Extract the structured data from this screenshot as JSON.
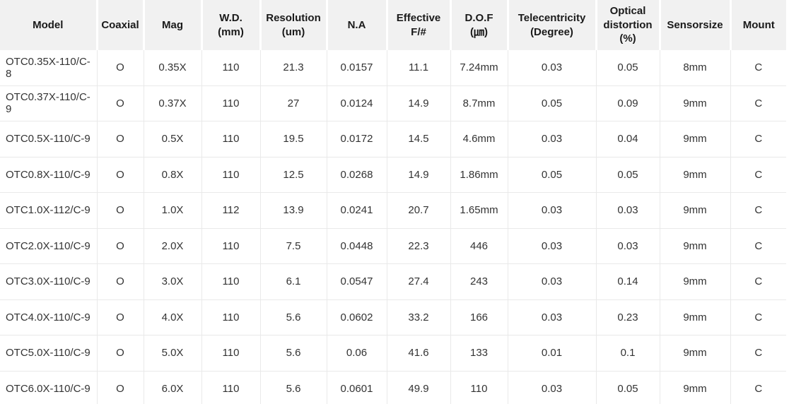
{
  "table": {
    "columns": [
      {
        "id": "model",
        "label": "Model"
      },
      {
        "id": "coaxial",
        "label": "Coaxial"
      },
      {
        "id": "mag",
        "label": "Mag"
      },
      {
        "id": "wd-mm",
        "label": "W.D.\n(mm)"
      },
      {
        "id": "resolution-um",
        "label": "Resolution\n(um)"
      },
      {
        "id": "na",
        "label": "N.A"
      },
      {
        "id": "effective-f-number",
        "label": "Effective\nF/#"
      },
      {
        "id": "dof-um",
        "label": "D.O.F\n(㎛)"
      },
      {
        "id": "telecentricity",
        "label": "Telecentricity\n(Degree)"
      },
      {
        "id": "optical-distortion",
        "label": "Optical\ndistortion\n(%)"
      },
      {
        "id": "sensorsize",
        "label": "Sensorsize"
      },
      {
        "id": "mount",
        "label": "Mount"
      }
    ],
    "rows": [
      {
        "cells": [
          "OTC0.35X-110/C-8",
          "O",
          "0.35X",
          "110",
          "21.3",
          "0.0157",
          "11.1",
          "7.24mm",
          "0.03",
          "0.05",
          "8mm",
          "C"
        ]
      },
      {
        "cells": [
          "OTC0.37X-110/C-9",
          "O",
          "0.37X",
          "110",
          "27",
          "0.0124",
          "14.9",
          "8.7mm",
          "0.05",
          "0.09",
          "9mm",
          "C"
        ]
      },
      {
        "cells": [
          "OTC0.5X-110/C-9",
          "O",
          "0.5X",
          "110",
          "19.5",
          "0.0172",
          "14.5",
          "4.6mm",
          "0.03",
          "0.04",
          "9mm",
          "C"
        ]
      },
      {
        "cells": [
          "OTC0.8X-110/C-9",
          "O",
          "0.8X",
          "110",
          "12.5",
          "0.0268",
          "14.9",
          "1.86mm",
          "0.05",
          "0.05",
          "9mm",
          "C"
        ]
      },
      {
        "cells": [
          "OTC1.0X-112/C-9",
          "O",
          "1.0X",
          "112",
          "13.9",
          "0.0241",
          "20.7",
          "1.65mm",
          "0.03",
          "0.03",
          "9mm",
          "C"
        ]
      },
      {
        "cells": [
          "OTC2.0X-110/C-9",
          "O",
          "2.0X",
          "110",
          "7.5",
          "0.0448",
          "22.3",
          "446",
          "0.03",
          "0.03",
          "9mm",
          "C"
        ]
      },
      {
        "cells": [
          "OTC3.0X-110/C-9",
          "O",
          "3.0X",
          "110",
          "6.1",
          "0.0547",
          "27.4",
          "243",
          "0.03",
          "0.14",
          "9mm",
          "C"
        ]
      },
      {
        "cells": [
          "OTC4.0X-110/C-9",
          "O",
          "4.0X",
          "110",
          "5.6",
          "0.0602",
          "33.2",
          "166",
          "0.03",
          "0.23",
          "9mm",
          "C"
        ]
      },
      {
        "cells": [
          "OTC5.0X-110/C-9",
          "O",
          "5.0X",
          "110",
          "5.6",
          "0.06",
          "41.6",
          "133",
          "0.01",
          "0.1",
          "9mm",
          "C"
        ]
      },
      {
        "cells": [
          "OTC6.0X-110/C-9",
          "O",
          "6.0X",
          "110",
          "5.6",
          "0.0601",
          "49.9",
          "110",
          "0.03",
          "0.05",
          "9mm",
          "C"
        ]
      }
    ]
  },
  "colors": {
    "header_bg": "#f1f1f1",
    "header_text": "#1a1a1a",
    "body_text": "#333333",
    "grid_line": "#e9e9e9",
    "bottom_border": "#d9d9d9"
  }
}
